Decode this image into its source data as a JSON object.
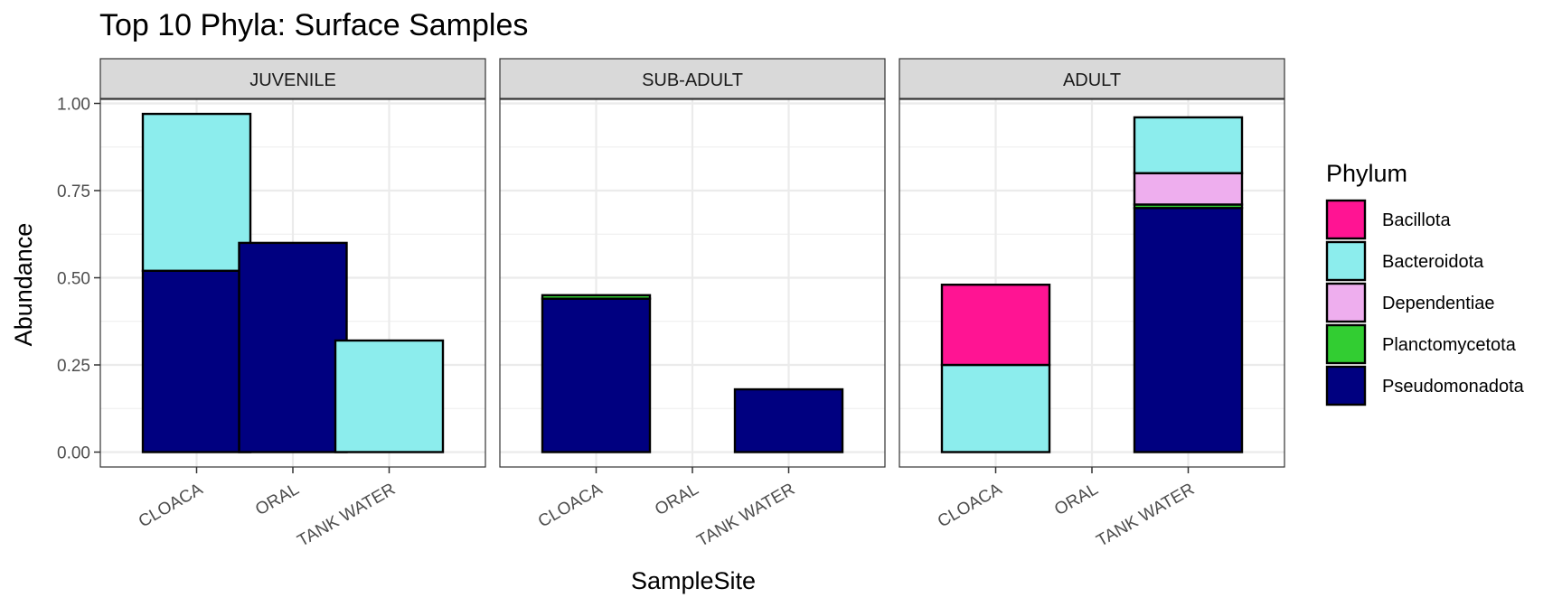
{
  "chart_data": {
    "type": "bar",
    "title": "Top 10 Phyla: Surface Samples",
    "xlabel": "SampleSite",
    "ylabel": "Abundance",
    "ylim": [
      0,
      1
    ],
    "y_ticks": [
      "0.00",
      "0.25",
      "0.50",
      "0.75",
      "1.00"
    ],
    "grid": true,
    "legend_position": "right",
    "categories": [
      "CLOACA",
      "ORAL",
      "TANK WATER"
    ],
    "legend": {
      "title": "Phylum",
      "entries": [
        {
          "name": "Bacillota",
          "color": "#ff1493"
        },
        {
          "name": "Bacteroidota",
          "color": "#8ceded"
        },
        {
          "name": "Dependentiae",
          "color": "#eeaeee"
        },
        {
          "name": "Planctomycetota",
          "color": "#32cd32"
        },
        {
          "name": "Pseudomonadota",
          "color": "#000080"
        }
      ]
    },
    "stack_order": [
      "Pseudomonadota",
      "Planctomycetota",
      "Dependentiae",
      "Bacteroidota",
      "Bacillota"
    ],
    "facets": [
      {
        "label": "JUVENILE",
        "series": [
          {
            "name": "Bacillota",
            "values": [
              0,
              0,
              0
            ]
          },
          {
            "name": "Bacteroidota",
            "values": [
              0.45,
              0,
              0.32
            ]
          },
          {
            "name": "Dependentiae",
            "values": [
              0,
              0,
              0
            ]
          },
          {
            "name": "Planctomycetota",
            "values": [
              0,
              0,
              0
            ]
          },
          {
            "name": "Pseudomonadota",
            "values": [
              0.52,
              0.6,
              0
            ]
          }
        ]
      },
      {
        "label": "SUB-ADULT",
        "series": [
          {
            "name": "Bacillota",
            "values": [
              0,
              0,
              0
            ]
          },
          {
            "name": "Bacteroidota",
            "values": [
              0,
              0,
              0
            ]
          },
          {
            "name": "Dependentiae",
            "values": [
              0,
              0,
              0
            ]
          },
          {
            "name": "Planctomycetota",
            "values": [
              0.01,
              0,
              0
            ]
          },
          {
            "name": "Pseudomonadota",
            "values": [
              0.44,
              0,
              0.18
            ]
          }
        ]
      },
      {
        "label": "ADULT",
        "series": [
          {
            "name": "Bacillota",
            "values": [
              0.23,
              0,
              0
            ]
          },
          {
            "name": "Bacteroidota",
            "values": [
              0.25,
              0,
              0.16
            ]
          },
          {
            "name": "Dependentiae",
            "values": [
              0,
              0,
              0.09
            ]
          },
          {
            "name": "Planctomycetota",
            "values": [
              0,
              0,
              0.01
            ]
          },
          {
            "name": "Pseudomonadota",
            "values": [
              0,
              0,
              0.7
            ]
          }
        ]
      }
    ]
  }
}
